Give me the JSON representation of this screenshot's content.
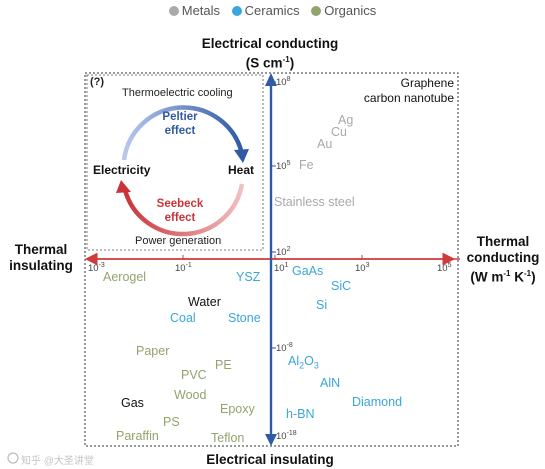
{
  "legend": {
    "metals": {
      "label": "Metals",
      "color": "#aaaaaa"
    },
    "ceramics": {
      "label": "Ceramics",
      "color": "#3aa6dc"
    },
    "organics": {
      "label": "Organics",
      "color": "#93a36d"
    }
  },
  "axes": {
    "top": {
      "line1": "Electrical conducting",
      "line2": "(S cm",
      "sup": "-1",
      "close": ")"
    },
    "bottom": "Electrical insulating",
    "left": {
      "line1": "Thermal",
      "line2": "insulating"
    },
    "right": {
      "line1": "Thermal",
      "line2": "conducting",
      "line3a": "(W m",
      "sup1": "-1",
      "line3b": " K",
      "sup2": "-1",
      "line3c": ")"
    }
  },
  "xticks": [
    {
      "base": "10",
      "exp": "-3"
    },
    {
      "base": "10",
      "exp": "-1"
    },
    {
      "base": "10",
      "exp": "1"
    },
    {
      "base": "10",
      "exp": "3"
    },
    {
      "base": "10",
      "exp": "5"
    }
  ],
  "yticks": [
    {
      "base": "10",
      "exp": "8"
    },
    {
      "base": "10",
      "exp": "5"
    },
    {
      "base": "10",
      "exp": "2"
    },
    {
      "base": "10",
      "exp": "-8"
    },
    {
      "base": "10",
      "exp": "-18"
    }
  ],
  "inset": {
    "badge": "(?)",
    "top_label": "Thermoelectric cooling",
    "bottom_label": "Power generation",
    "peltier_line1": "Peltier",
    "peltier_line2": "effect",
    "seebeck_line1": "Seebeck",
    "seebeck_line2": "effect",
    "left_node": "Electricity",
    "right_node": "Heat",
    "peltier_color": "#2f5aa6",
    "seebeck_color": "#c9343a"
  },
  "materials": {
    "graphene_line1": "Graphene",
    "graphene_line2": "carbon nanotube",
    "ag": "Ag",
    "cu": "Cu",
    "au": "Au",
    "fe": "Fe",
    "stainless": "Stainless steel",
    "aerogel": "Aerogel",
    "ysz": "YSZ",
    "gaas": "GaAs",
    "sic": "SiC",
    "si": "Si",
    "water": "Water",
    "coal": "Coal",
    "stone": "Stone",
    "paper": "Paper",
    "pe": "PE",
    "pvc": "PVC",
    "wood": "Wood",
    "gas": "Gas",
    "epoxy": "Epoxy",
    "ps": "PS",
    "paraffin": "Paraffin",
    "teflon": "Teflon",
    "al2o3": {
      "a": "Al",
      "s1": "2",
      "b": "O",
      "s2": "3"
    },
    "aln": "AlN",
    "diamond": "Diamond",
    "hbn": "h-BN"
  },
  "watermark": "知乎 @大圣讲堂"
}
